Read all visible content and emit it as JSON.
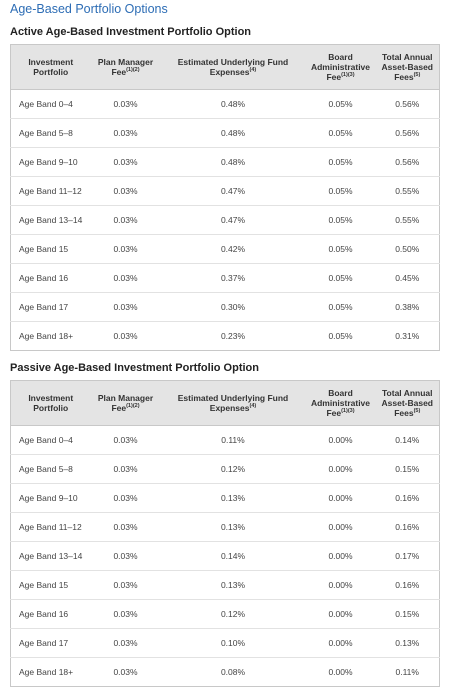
{
  "title": "Age-Based Portfolio Options",
  "tables": [
    {
      "heading": "Active Age-Based Investment Portfolio Option",
      "columns": [
        {
          "text": "Investment Portfolio"
        },
        {
          "text": "Plan Manager Fee",
          "sup": "(1)(2)"
        },
        {
          "text": "Estimated Underlying Fund Expenses",
          "sup": "(4)"
        },
        {
          "text": "Board Administrative Fee",
          "sup": "(1)(3)"
        },
        {
          "text": "Total Annual Asset-Based Fees",
          "sup": "(5)"
        }
      ],
      "rows": [
        [
          "Age Band 0–4",
          "0.03%",
          "0.48%",
          "0.05%",
          "0.56%"
        ],
        [
          "Age Band 5–8",
          "0.03%",
          "0.48%",
          "0.05%",
          "0.56%"
        ],
        [
          "Age Band 9–10",
          "0.03%",
          "0.48%",
          "0.05%",
          "0.56%"
        ],
        [
          "Age Band 11–12",
          "0.03%",
          "0.47%",
          "0.05%",
          "0.55%"
        ],
        [
          "Age Band 13–14",
          "0.03%",
          "0.47%",
          "0.05%",
          "0.55%"
        ],
        [
          "Age Band 15",
          "0.03%",
          "0.42%",
          "0.05%",
          "0.50%"
        ],
        [
          "Age Band 16",
          "0.03%",
          "0.37%",
          "0.05%",
          "0.45%"
        ],
        [
          "Age Band 17",
          "0.03%",
          "0.30%",
          "0.05%",
          "0.38%"
        ],
        [
          "Age Band 18+",
          "0.03%",
          "0.23%",
          "0.05%",
          "0.31%"
        ]
      ]
    },
    {
      "heading": "Passive Age-Based Investment Portfolio Option",
      "columns": [
        {
          "text": "Investment Portfolio"
        },
        {
          "text": "Plan Manager Fee",
          "sup": "(1)(2)"
        },
        {
          "text": "Estimated Underlying Fund Expenses",
          "sup": "(4)"
        },
        {
          "text": "Board Administrative Fee",
          "sup": "(1)(3)"
        },
        {
          "text": "Total Annual Asset-Based Fees",
          "sup": "(5)"
        }
      ],
      "rows": [
        [
          "Age Band 0–4",
          "0.03%",
          "0.11%",
          "0.00%",
          "0.14%"
        ],
        [
          "Age Band 5–8",
          "0.03%",
          "0.12%",
          "0.00%",
          "0.15%"
        ],
        [
          "Age Band 9–10",
          "0.03%",
          "0.13%",
          "0.00%",
          "0.16%"
        ],
        [
          "Age Band 11–12",
          "0.03%",
          "0.13%",
          "0.00%",
          "0.16%"
        ],
        [
          "Age Band 13–14",
          "0.03%",
          "0.14%",
          "0.00%",
          "0.17%"
        ],
        [
          "Age Band 15",
          "0.03%",
          "0.13%",
          "0.00%",
          "0.16%"
        ],
        [
          "Age Band 16",
          "0.03%",
          "0.12%",
          "0.00%",
          "0.15%"
        ],
        [
          "Age Band 17",
          "0.03%",
          "0.10%",
          "0.00%",
          "0.13%"
        ],
        [
          "Age Band 18+",
          "0.03%",
          "0.08%",
          "0.00%",
          "0.11%"
        ]
      ]
    }
  ]
}
